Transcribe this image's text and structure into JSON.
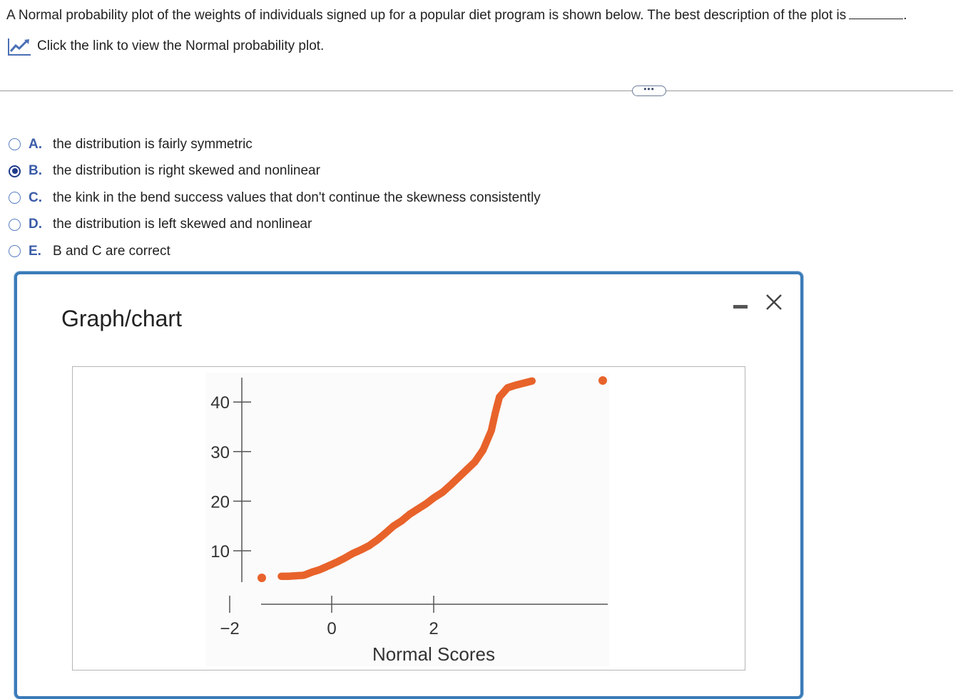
{
  "question": {
    "text": "A Normal probability plot of the weights of individuals signed up for a popular diet program is shown below. The best description of the plot is",
    "end": "."
  },
  "link": {
    "text": "Click the link to view the Normal probability plot.",
    "icon": "chart-icon"
  },
  "more_button": "•••",
  "options": [
    {
      "letter": "A.",
      "text": "the distribution is fairly symmetric",
      "selected": false
    },
    {
      "letter": "B.",
      "text": "the distribution is right skewed and nonlinear",
      "selected": true
    },
    {
      "letter": "C.",
      "text": "the kink in the bend success values that don't continue the skewness consistently",
      "selected": false
    },
    {
      "letter": "D.",
      "text": "the distribution is left skewed and nonlinear",
      "selected": false
    },
    {
      "letter": "E.",
      "text": "B and C are correct",
      "selected": false
    }
  ],
  "dialog": {
    "title": "Graph/chart",
    "accent": "#3b7bb8"
  },
  "chart_data": {
    "type": "scatter",
    "xlabel": "Normal Scores",
    "ylabel": "",
    "xlim": [
      -3.4,
      3.5
    ],
    "ylim": [
      4,
      45
    ],
    "xticks": [
      -2,
      0,
      2
    ],
    "xtick_labels": [
      "−2",
      "0",
      "2"
    ],
    "yticks": [
      10,
      20,
      30,
      40
    ],
    "ytick_labels": [
      "10",
      "20",
      "30",
      "40"
    ],
    "grid": false,
    "point_color": "#e8632b",
    "series": [
      {
        "points": [
          [
            -3.35,
            4.6
          ],
          [
            -3.15,
            4.9
          ],
          [
            -3.0,
            4.9
          ],
          [
            -2.8,
            5.0
          ],
          [
            -2.6,
            5.1
          ],
          [
            -2.4,
            5.7
          ],
          [
            -2.2,
            6.2
          ],
          [
            -2.0,
            6.9
          ],
          [
            -1.8,
            7.6
          ],
          [
            -1.6,
            8.4
          ],
          [
            -1.4,
            9.3
          ],
          [
            -1.2,
            10.0
          ],
          [
            -1.0,
            10.8
          ],
          [
            -0.8,
            11.9
          ],
          [
            -0.6,
            13.2
          ],
          [
            -0.4,
            14.6
          ],
          [
            -0.2,
            15.6
          ],
          [
            0.0,
            16.9
          ],
          [
            0.2,
            17.9
          ],
          [
            0.4,
            18.9
          ],
          [
            0.6,
            20.1
          ],
          [
            0.8,
            21.1
          ],
          [
            1.0,
            22.5
          ],
          [
            1.2,
            24.0
          ],
          [
            1.4,
            25.5
          ],
          [
            1.6,
            27.0
          ],
          [
            1.8,
            29.3
          ],
          [
            2.0,
            33.0
          ],
          [
            2.1,
            36.5
          ],
          [
            2.2,
            39.5
          ],
          [
            2.4,
            41.3
          ],
          [
            2.6,
            41.8
          ],
          [
            2.8,
            42.2
          ],
          [
            3.0,
            42.6
          ],
          [
            3.3,
            42.7
          ]
        ]
      }
    ]
  }
}
